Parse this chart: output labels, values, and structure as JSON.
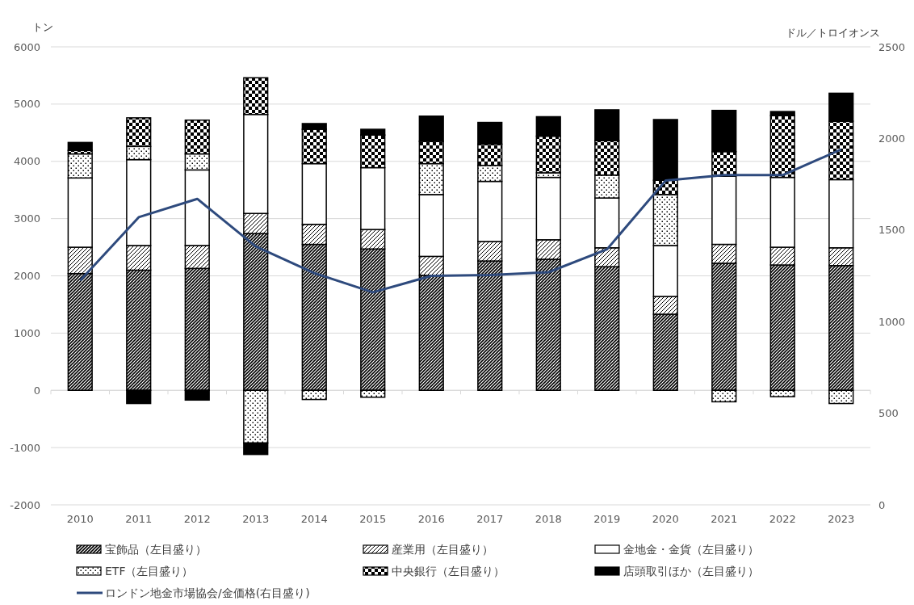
{
  "chart_data": {
    "type": "bar",
    "stacked": true,
    "ylabel": "トン",
    "y2label": "ドル／トロイオンス",
    "categories": [
      "2010",
      "2011",
      "2012",
      "2013",
      "2014",
      "2015",
      "2016",
      "2017",
      "2018",
      "2019",
      "2020",
      "2021",
      "2022",
      "2023"
    ],
    "series": [
      {
        "name": "宝飾品（左目盛り）",
        "color": "#000000",
        "values": [
          2040,
          2100,
          2130,
          2740,
          2550,
          2470,
          2010,
          2260,
          2290,
          2160,
          1330,
          2220,
          2190,
          2180
        ]
      },
      {
        "name": "産業用（左目盛り）",
        "color": "#000000",
        "values": [
          460,
          430,
          400,
          350,
          350,
          340,
          330,
          340,
          340,
          330,
          310,
          330,
          310,
          310
        ]
      },
      {
        "name": "金地金・金貨（左目盛り）",
        "color": "#ffffff",
        "values": [
          1210,
          1500,
          1320,
          1730,
          1060,
          1080,
          1080,
          1050,
          1090,
          870,
          890,
          1190,
          1220,
          1190
        ]
      },
      {
        "name": "ETF（左目盛り）",
        "color": "#000000",
        "values": [
          420,
          230,
          280,
          -920,
          -160,
          -120,
          540,
          280,
          80,
          400,
          890,
          -200,
          -110,
          -230
        ]
      },
      {
        "name": "中央銀行（左目盛り）",
        "color": "#000000",
        "values": [
          60,
          500,
          590,
          640,
          600,
          570,
          390,
          370,
          640,
          600,
          250,
          430,
          1080,
          1020
        ]
      },
      {
        "name": "店頭取引ほか（左目盛り）",
        "color": "#000000",
        "values": [
          140,
          -230,
          -170,
          -200,
          100,
          100,
          440,
          380,
          340,
          540,
          1060,
          720,
          70,
          490
        ]
      },
      {
        "name": "ロンドン地金市場協会/金価格(右目盛り)",
        "type": "line",
        "axis": "y2",
        "color": "#2e4a7d",
        "values": [
          1225,
          1570,
          1670,
          1410,
          1265,
          1160,
          1250,
          1255,
          1270,
          1395,
          1770,
          1800,
          1800,
          1940
        ]
      }
    ],
    "ylim": [
      -2000,
      6000
    ],
    "yticks": [
      -2000,
      -1000,
      0,
      1000,
      2000,
      3000,
      4000,
      5000,
      6000
    ],
    "y2lim": [
      0,
      2500
    ],
    "y2ticks": [
      0,
      500,
      1000,
      1500,
      2000,
      2500
    ],
    "grid": "y",
    "legend": "bottom"
  }
}
